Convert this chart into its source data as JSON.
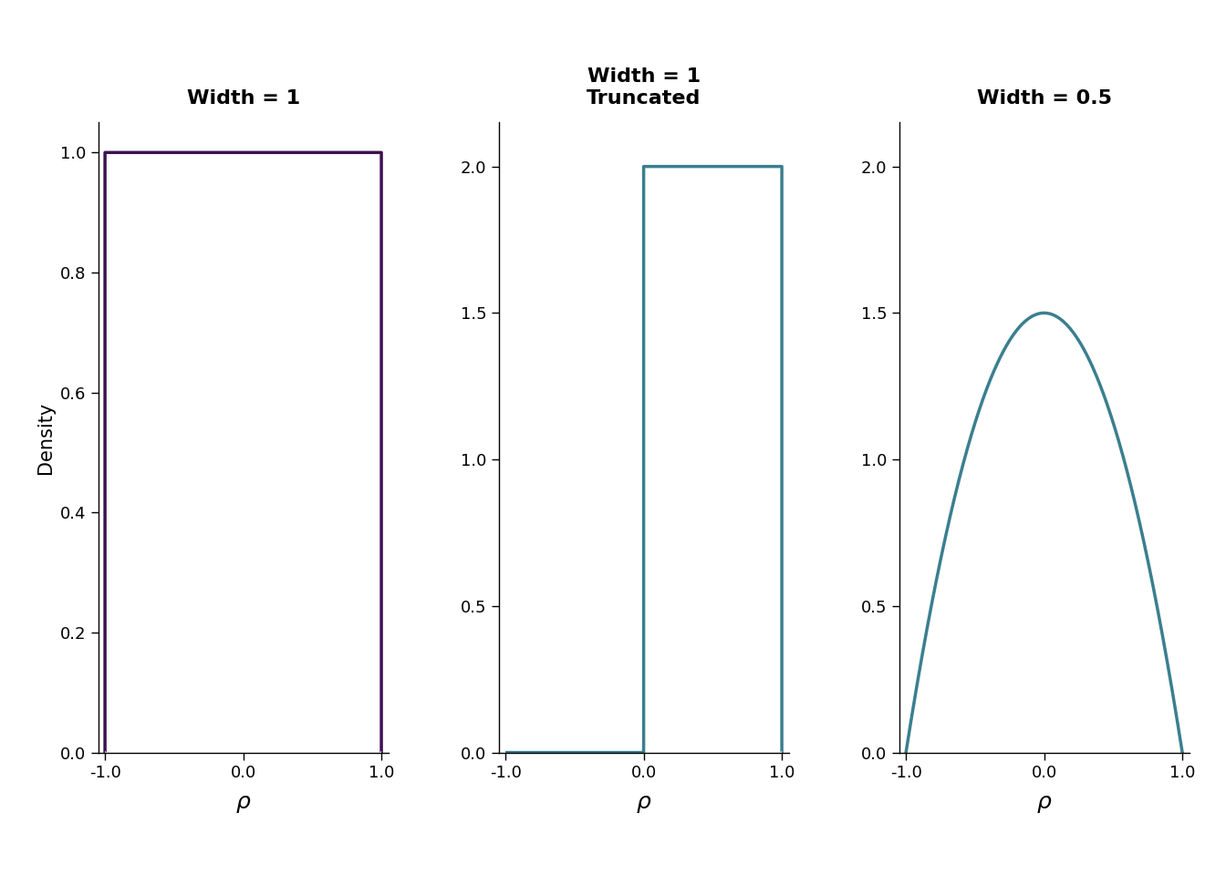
{
  "panels": [
    {
      "title_lines": [
        "Width = 1"
      ],
      "color": "#3d1152",
      "xlim": [
        -1.0,
        1.0
      ],
      "ylim": [
        0.0,
        1.05
      ],
      "yticks": [
        0.0,
        0.2,
        0.4,
        0.6,
        0.8,
        1.0
      ],
      "xticks": [
        -1.0,
        0.0,
        1.0
      ],
      "type": "uniform",
      "low": -1.0,
      "high": 1.0,
      "density": 1.0
    },
    {
      "title_lines": [
        "Width = 1",
        "Truncated"
      ],
      "color": "#3a7f8f",
      "xlim": [
        -1.0,
        1.0
      ],
      "ylim": [
        0.0,
        2.15
      ],
      "yticks": [
        0.0,
        0.5,
        1.0,
        1.5,
        2.0
      ],
      "xticks": [
        -1.0,
        0.0,
        1.0
      ],
      "type": "uniform",
      "low": 0.0,
      "high": 1.0,
      "density": 2.0
    },
    {
      "title_lines": [
        "Width = 0.5"
      ],
      "color": "#3a7f8f",
      "xlim": [
        -1.0,
        1.0
      ],
      "ylim": [
        0.0,
        2.15
      ],
      "yticks": [
        0.0,
        0.5,
        1.0,
        1.5,
        2.0
      ],
      "xticks": [
        -1.0,
        0.0,
        1.0
      ],
      "type": "beta_arch",
      "alpha_beta": 2.0,
      "beta_low": -1.0,
      "beta_high": 1.0
    }
  ],
  "ylabel": "Density",
  "xlabel": "ρ",
  "background_color": "#ffffff",
  "title_fontsize": 16,
  "axis_fontsize": 15,
  "tick_fontsize": 13,
  "line_width": 2.5
}
